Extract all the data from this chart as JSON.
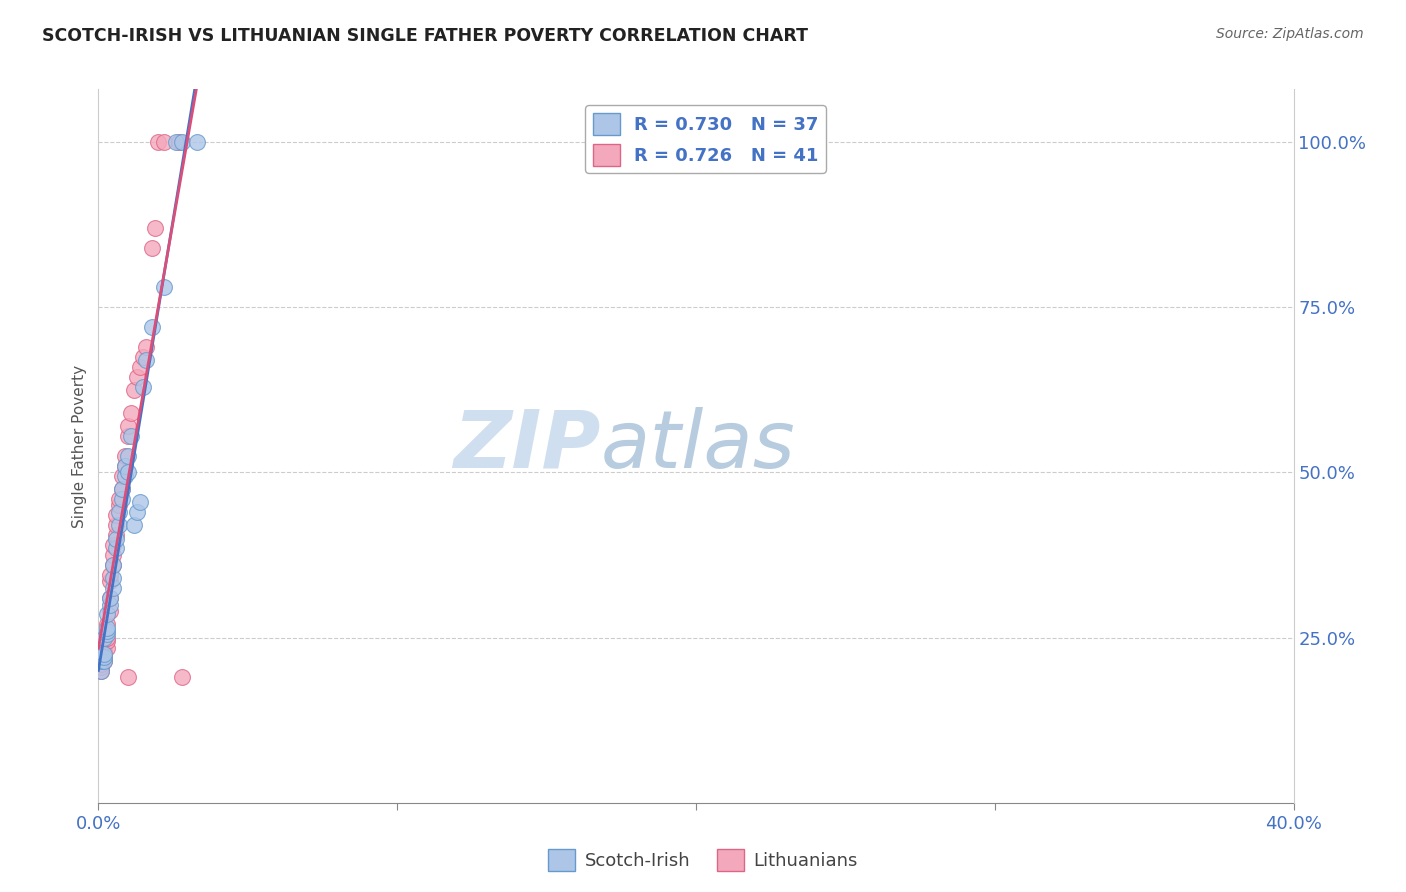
{
  "title": "SCOTCH-IRISH VS LITHUANIAN SINGLE FATHER POVERTY CORRELATION CHART",
  "source": "Source: ZipAtlas.com",
  "ylabel": "Single Father Poverty",
  "background_color": "#ffffff",
  "grid_color": "#cccccc",
  "scotch_irish_color": "#adc6e8",
  "scotch_irish_edge": "#6699cc",
  "lithuanian_color": "#f4a8bc",
  "lithuanian_edge": "#dd6688",
  "scotch_irish_line_color": "#4472c4",
  "lithuanian_line_color": "#d94f7a",
  "watermark_zip_color": "#d8e8f5",
  "watermark_atlas_color": "#b8cfe8",
  "scotch_irish_R": 0.73,
  "scotch_irish_N": 37,
  "lithuanian_R": 0.726,
  "lithuanian_N": 41,
  "marker_size": 130,
  "scotch_irish_points": [
    [
      0.001,
      0.2
    ],
    [
      0.001,
      0.215
    ],
    [
      0.001,
      0.22
    ],
    [
      0.002,
      0.215
    ],
    [
      0.002,
      0.22
    ],
    [
      0.002,
      0.225
    ],
    [
      0.002,
      0.25
    ],
    [
      0.003,
      0.255
    ],
    [
      0.003,
      0.26
    ],
    [
      0.003,
      0.265
    ],
    [
      0.003,
      0.285
    ],
    [
      0.004,
      0.3
    ],
    [
      0.004,
      0.31
    ],
    [
      0.005,
      0.325
    ],
    [
      0.005,
      0.34
    ],
    [
      0.005,
      0.36
    ],
    [
      0.006,
      0.385
    ],
    [
      0.006,
      0.4
    ],
    [
      0.007,
      0.42
    ],
    [
      0.007,
      0.44
    ],
    [
      0.008,
      0.46
    ],
    [
      0.008,
      0.475
    ],
    [
      0.009,
      0.495
    ],
    [
      0.009,
      0.51
    ],
    [
      0.01,
      0.5
    ],
    [
      0.01,
      0.525
    ],
    [
      0.011,
      0.555
    ],
    [
      0.012,
      0.42
    ],
    [
      0.013,
      0.44
    ],
    [
      0.014,
      0.455
    ],
    [
      0.015,
      0.63
    ],
    [
      0.016,
      0.67
    ],
    [
      0.018,
      0.72
    ],
    [
      0.022,
      0.78
    ],
    [
      0.026,
      1.0
    ],
    [
      0.028,
      1.0
    ],
    [
      0.033,
      1.0
    ]
  ],
  "lithuanian_points": [
    [
      0.001,
      0.2
    ],
    [
      0.001,
      0.205
    ],
    [
      0.001,
      0.21
    ],
    [
      0.002,
      0.215
    ],
    [
      0.002,
      0.22
    ],
    [
      0.002,
      0.23
    ],
    [
      0.003,
      0.235
    ],
    [
      0.003,
      0.245
    ],
    [
      0.003,
      0.25
    ],
    [
      0.003,
      0.27
    ],
    [
      0.004,
      0.29
    ],
    [
      0.004,
      0.31
    ],
    [
      0.004,
      0.335
    ],
    [
      0.004,
      0.345
    ],
    [
      0.005,
      0.36
    ],
    [
      0.005,
      0.375
    ],
    [
      0.005,
      0.39
    ],
    [
      0.006,
      0.405
    ],
    [
      0.006,
      0.42
    ],
    [
      0.006,
      0.435
    ],
    [
      0.007,
      0.45
    ],
    [
      0.007,
      0.46
    ],
    [
      0.008,
      0.475
    ],
    [
      0.008,
      0.495
    ],
    [
      0.009,
      0.51
    ],
    [
      0.009,
      0.525
    ],
    [
      0.01,
      0.555
    ],
    [
      0.01,
      0.57
    ],
    [
      0.011,
      0.59
    ],
    [
      0.012,
      0.625
    ],
    [
      0.013,
      0.645
    ],
    [
      0.014,
      0.66
    ],
    [
      0.015,
      0.675
    ],
    [
      0.016,
      0.69
    ],
    [
      0.018,
      0.84
    ],
    [
      0.019,
      0.87
    ],
    [
      0.02,
      1.0
    ],
    [
      0.022,
      1.0
    ],
    [
      0.027,
      1.0
    ],
    [
      0.028,
      0.19
    ],
    [
      0.01,
      0.19
    ]
  ],
  "xmin": 0.0,
  "xmax": 0.4,
  "ymin": 0.0,
  "ymax": 1.08
}
